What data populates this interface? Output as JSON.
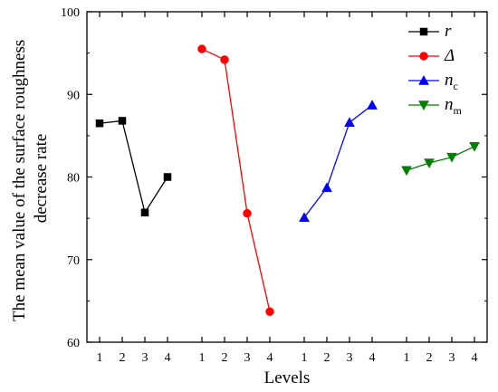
{
  "chart_data": {
    "type": "line",
    "xlabel": "Levels",
    "ylabel": "The mean value of the surface roughness decrease rate",
    "ylabel_lines": [
      "The mean value of the surface roughness",
      "decrease rate"
    ],
    "ylim": [
      60,
      100
    ],
    "yticks": [
      60,
      70,
      80,
      90,
      100
    ],
    "grid": false,
    "legend_position": "top-right",
    "groups": [
      "r",
      "Δ",
      "nc",
      "nm"
    ],
    "level_labels": [
      "1",
      "2",
      "3",
      "4"
    ],
    "series": [
      {
        "name": "r",
        "name_main": "r",
        "name_sub": "",
        "color": "#000000",
        "marker": "square",
        "values": [
          86.5,
          86.8,
          75.7,
          80.0
        ]
      },
      {
        "name": "Δ",
        "name_main": "Δ",
        "name_sub": "",
        "color": "#ff0000",
        "marker": "circle",
        "values": [
          95.5,
          94.2,
          75.6,
          63.7
        ]
      },
      {
        "name": "nc",
        "name_main": "n",
        "name_sub": "c",
        "color": "#0000ff",
        "marker": "triangle-up",
        "values": [
          75.1,
          78.7,
          86.6,
          88.7
        ]
      },
      {
        "name": "nm",
        "name_main": "n",
        "name_sub": "m",
        "color": "#008000",
        "marker": "triangle-down",
        "values": [
          80.8,
          81.7,
          82.4,
          83.7
        ]
      }
    ]
  }
}
